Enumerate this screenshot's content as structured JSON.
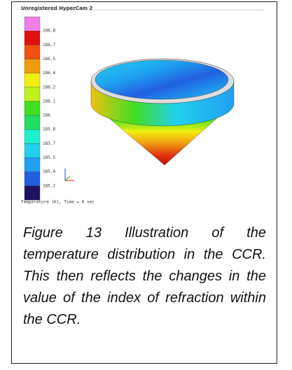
{
  "figure": {
    "watermark": "Unregistered HyperCam 2",
    "legend_labels": [
      "186.8",
      "186.7",
      "186.5",
      "186.4",
      "186.2",
      "186.1",
      "186",
      "185.8",
      "185.7",
      "185.5",
      "185.4",
      "185.2"
    ],
    "footer": "Temperature (K), Time = 0 sec"
  },
  "caption": "Figure 13   Illustration of the temperature distribution in the CCR.  This then reflects the changes in the value of the index of refraction within the CCR."
}
